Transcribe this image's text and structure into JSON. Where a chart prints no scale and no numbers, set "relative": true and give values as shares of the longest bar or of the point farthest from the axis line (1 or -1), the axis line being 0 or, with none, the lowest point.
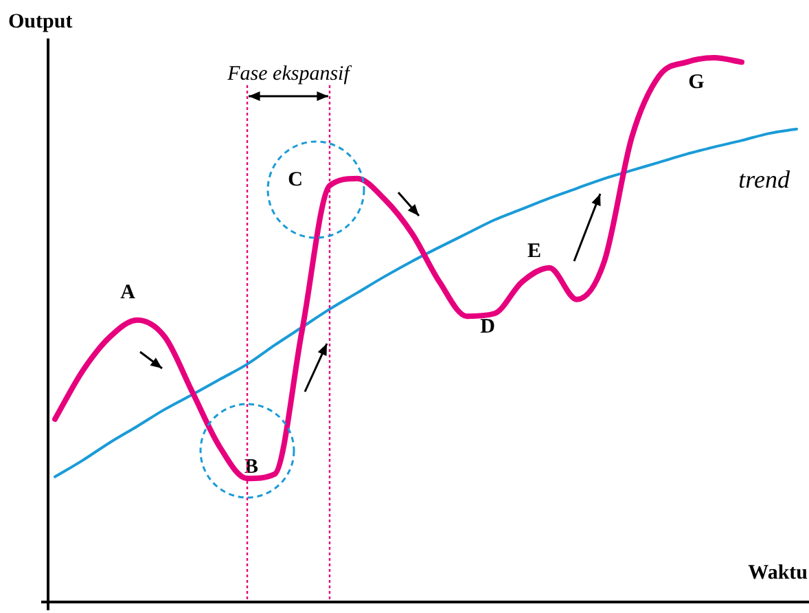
{
  "chart_data": {
    "type": "line",
    "relative": true,
    "xlabel": "Waktu",
    "ylabel": "Output",
    "categories": [
      null,
      null,
      null,
      null,
      null,
      null,
      null,
      null,
      null,
      null,
      null,
      null,
      null,
      null,
      null,
      null,
      null,
      null,
      null,
      null,
      null,
      null,
      null,
      null,
      null,
      null,
      null,
      null
    ],
    "series": [
      {
        "color": "#e6007e",
        "values": [
          0.336,
          0.424,
          0.487,
          0.518,
          0.487,
          0.386,
          0.285,
          0.227,
          0.235,
          0.5,
          0.765,
          0.778,
          0.74,
          0.677,
          0.588,
          0.525,
          0.53,
          0.588,
          0.614,
          0.556,
          0.626,
          0.854,
          0.967,
          0.992,
          1,
          0.992,
          null,
          null
        ]
      },
      {
        "name": "trend",
        "color": "#1a9bd7",
        "values": [
          0.23,
          0.26,
          0.293,
          0.323,
          0.354,
          0.381,
          0.409,
          0.437,
          0.472,
          0.505,
          0.538,
          0.568,
          0.598,
          0.626,
          0.652,
          0.677,
          0.702,
          0.722,
          0.742,
          0.76,
          0.778,
          0.793,
          0.808,
          0.823,
          0.836,
          0.848,
          0.861,
          0.869
        ]
      }
    ],
    "annotations": [
      "A",
      "B",
      "C",
      "D",
      "E",
      "G",
      "Fase ekspansif"
    ],
    "legend": false,
    "marker": "none",
    "line_style": "solid"
  }
}
